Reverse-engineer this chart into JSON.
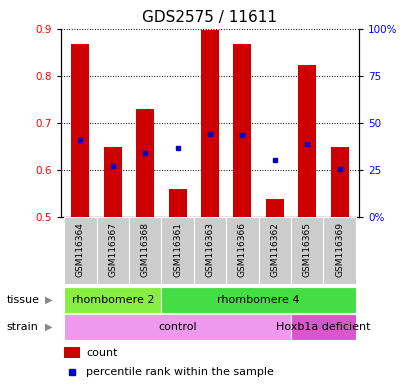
{
  "title": "GDS2575 / 11611",
  "samples": [
    "GSM116364",
    "GSM116367",
    "GSM116368",
    "GSM116361",
    "GSM116363",
    "GSM116366",
    "GSM116362",
    "GSM116365",
    "GSM116369"
  ],
  "bar_tops": [
    0.867,
    0.648,
    0.73,
    0.56,
    0.898,
    0.867,
    0.538,
    0.822,
    0.648
  ],
  "bar_bottoms": [
    0.5,
    0.5,
    0.5,
    0.5,
    0.5,
    0.5,
    0.5,
    0.5,
    0.5
  ],
  "percentile_values": [
    0.664,
    0.608,
    0.636,
    0.646,
    0.676,
    0.674,
    0.622,
    0.655,
    0.601
  ],
  "bar_color": "#cc0000",
  "dot_color": "#0000cc",
  "ylim": [
    0.5,
    0.9
  ],
  "yticks_left": [
    0.5,
    0.6,
    0.7,
    0.8,
    0.9
  ],
  "ytick_labels_left": [
    "0.5",
    "0.6",
    "0.7",
    "0.8",
    "0.9"
  ],
  "ytick_labels_right": [
    "0%",
    "25",
    "50",
    "75",
    "100%"
  ],
  "tissue_groups": [
    {
      "label": "rhombomere 2",
      "start": 0,
      "end": 3,
      "color": "#88ee44"
    },
    {
      "label": "rhombomere 4",
      "start": 3,
      "end": 9,
      "color": "#44dd44"
    }
  ],
  "strain_groups": [
    {
      "label": "control",
      "start": 0,
      "end": 7,
      "color": "#ee99ee"
    },
    {
      "label": "Hoxb1a deficient",
      "start": 7,
      "end": 9,
      "color": "#dd55cc"
    }
  ],
  "legend_count_color": "#cc0000",
  "legend_dot_color": "#0000cc",
  "title_fontsize": 11,
  "tick_fontsize": 7.5,
  "sample_fontsize": 6.5,
  "group_fontsize": 8,
  "legend_fontsize": 8,
  "bar_width": 0.55
}
